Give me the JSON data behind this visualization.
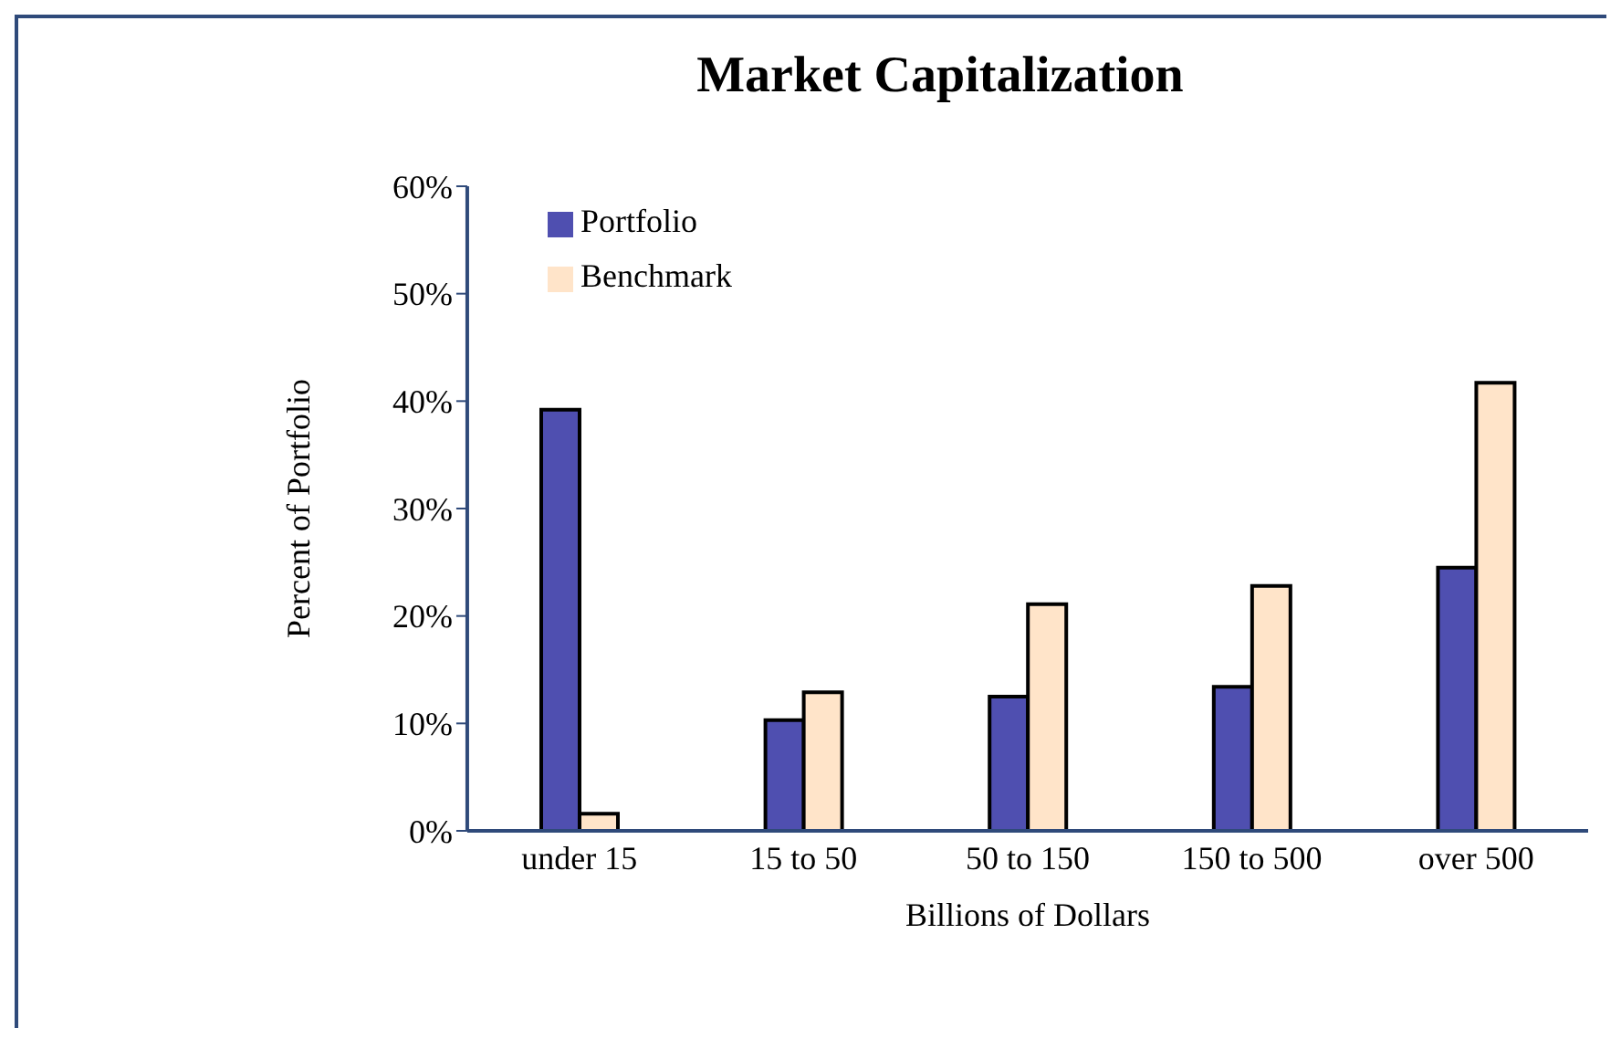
{
  "chart_data": {
    "type": "bar",
    "title": "Market Capitalization",
    "xlabel": "Billions of Dollars",
    "ylabel": "Percent of Portfolio",
    "categories": [
      "under 15",
      "15 to 50",
      "50 to 150",
      "150 to 500",
      "over 500"
    ],
    "series": [
      {
        "name": "Portfolio",
        "color": "#4f4fb0",
        "values": [
          39.2,
          10.3,
          12.5,
          13.4,
          24.5
        ]
      },
      {
        "name": "Benchmark",
        "color": "#ffe4c9",
        "values": [
          1.6,
          12.9,
          21.1,
          22.8,
          41.7
        ]
      }
    ],
    "ylim": [
      0,
      60
    ],
    "yticks": [
      {
        "value": 0,
        "label": "0%"
      },
      {
        "value": 10,
        "label": "10%"
      },
      {
        "value": 20,
        "label": "20%"
      },
      {
        "value": 30,
        "label": "30%"
      },
      {
        "value": 40,
        "label": "40%"
      },
      {
        "value": 50,
        "label": "50%"
      },
      {
        "value": 60,
        "label": "60%"
      }
    ],
    "grid": false,
    "legend": "top left"
  }
}
